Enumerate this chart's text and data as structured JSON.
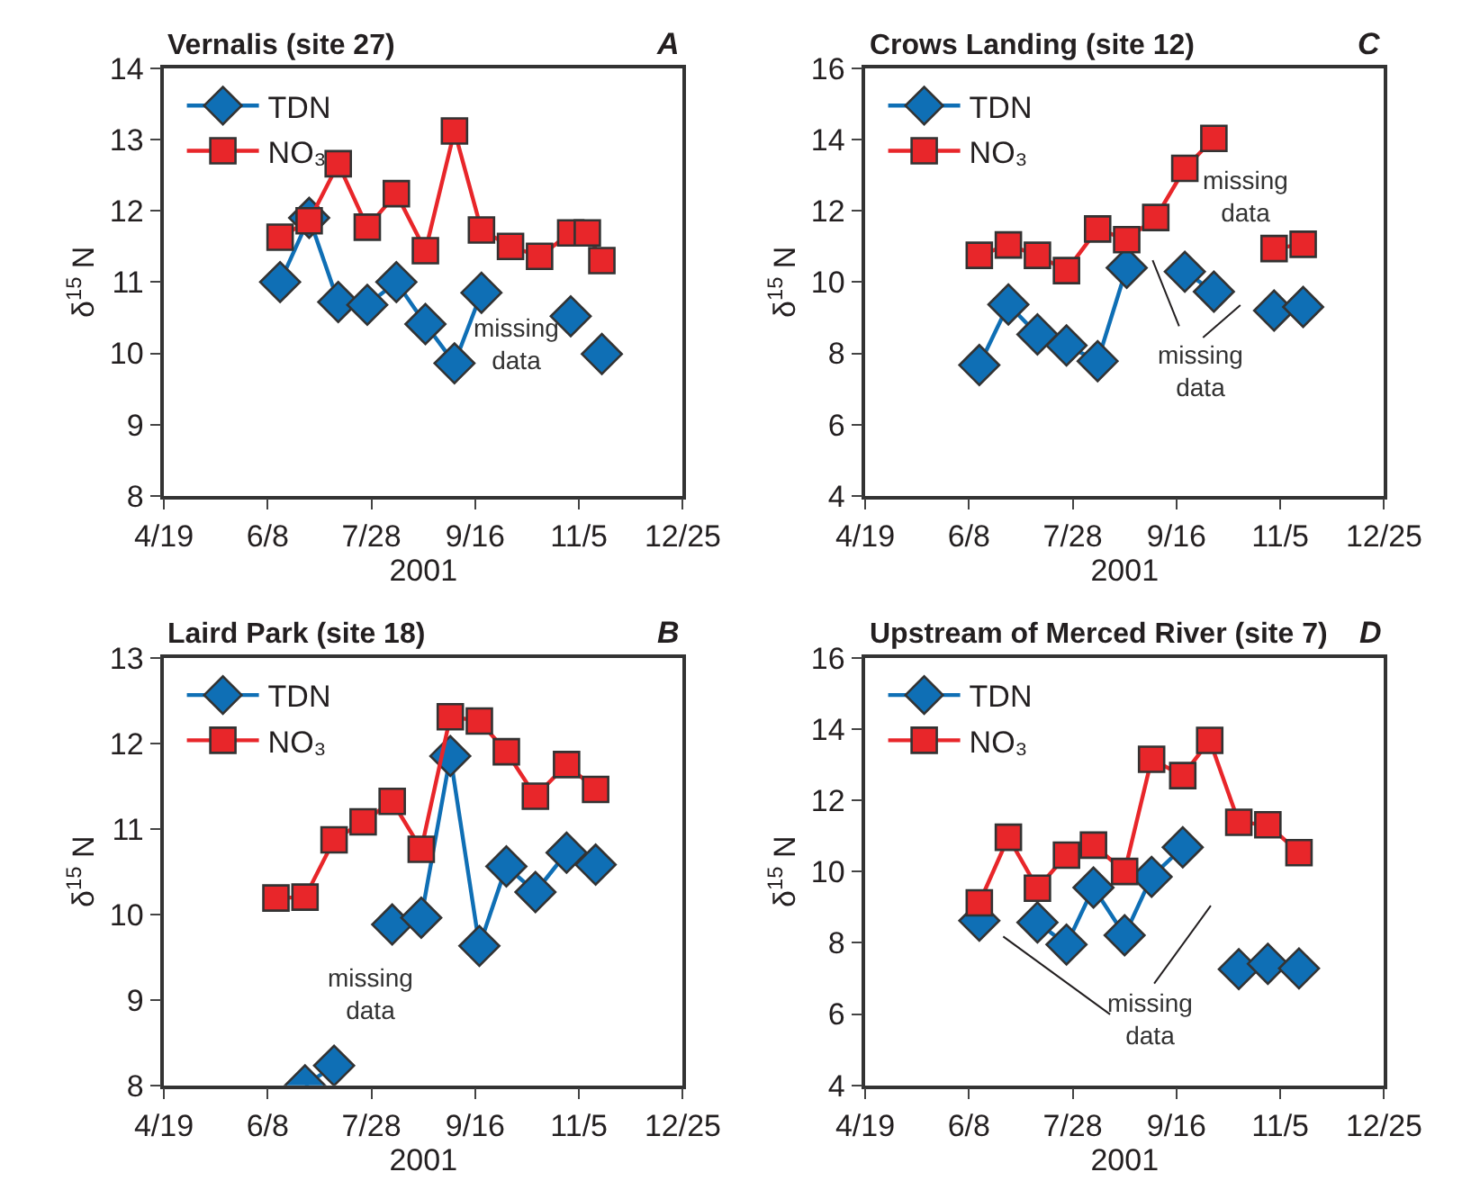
{
  "chart_data": [
    {
      "type": "line",
      "title": "Vernalis (site 27)",
      "xlabel": "2001",
      "ylabel": "δ$^{15}$ N",
      "x": [
        "2001-06-14",
        "2001-06-28",
        "2001-07-12",
        "2001-07-26",
        "2001-08-09",
        "2001-08-23",
        "2001-09-06",
        "2001-09-19",
        "2001-10-03",
        "2001-10-17",
        "2001-11-01",
        "2001-11-09",
        "2001-11-16"
      ],
      "series": [
        {
          "name": "TDN",
          "color": "#0f6fb5",
          "marker": "diamond",
          "values": [
            11.0,
            11.9,
            10.72,
            10.68,
            11.0,
            10.41,
            9.86,
            10.85,
            null,
            null,
            10.52,
            null,
            9.99
          ]
        },
        {
          "name": "NO₃",
          "color": "#e8262a",
          "marker": "square",
          "values": [
            11.63,
            11.86,
            12.66,
            11.77,
            12.24,
            11.44,
            13.12,
            11.73,
            11.5,
            11.36,
            11.69,
            11.69,
            11.3
          ]
        }
      ],
      "xlim": [
        "2001-04-19",
        "2001-12-25"
      ],
      "xticks": [
        {
          "value": "2001-04-19",
          "label": "4/19"
        },
        {
          "value": "2001-06-08",
          "label": "6/8"
        },
        {
          "value": "2001-07-28",
          "label": "7/28"
        },
        {
          "value": "2001-09-16",
          "label": "9/16"
        },
        {
          "value": "2001-11-05",
          "label": "11/5"
        },
        {
          "value": "2001-12-25",
          "label": "12/25"
        }
      ],
      "ylim": [
        8,
        14
      ],
      "yticks": [
        8,
        9,
        10,
        11,
        12,
        13,
        14
      ],
      "legend": "top left",
      "annotations": [
        "A",
        "missing data"
      ]
    },
    {
      "type": "line",
      "title": "Crows Landing (site 12)",
      "xlabel": "2001",
      "ylabel": "δ$^{15}$ N",
      "x": [
        "2001-06-13",
        "2001-06-27",
        "2001-07-11",
        "2001-07-25",
        "2001-08-09",
        "2001-08-23",
        "2001-09-06",
        "2001-09-20",
        "2001-10-04",
        "2001-10-18",
        "2001-11-02",
        "2001-11-16"
      ],
      "series": [
        {
          "name": "TDN",
          "color": "#0f6fb5",
          "marker": "diamond",
          "values": [
            7.67,
            9.37,
            8.53,
            8.22,
            7.78,
            10.4,
            null,
            10.29,
            9.73,
            null,
            9.2,
            9.3
          ]
        },
        {
          "name": "NO₃",
          "color": "#e8262a",
          "marker": "square",
          "values": [
            10.75,
            11.04,
            10.75,
            10.32,
            11.49,
            11.19,
            11.81,
            13.19,
            14.03,
            null,
            10.94,
            11.06
          ]
        }
      ],
      "xlim": [
        "2001-04-19",
        "2001-12-25"
      ],
      "xticks": [
        {
          "value": "2001-04-19",
          "label": "4/19"
        },
        {
          "value": "2001-06-08",
          "label": "6/8"
        },
        {
          "value": "2001-07-28",
          "label": "7/28"
        },
        {
          "value": "2001-09-16",
          "label": "9/16"
        },
        {
          "value": "2001-11-05",
          "label": "11/5"
        },
        {
          "value": "2001-12-25",
          "label": "12/25"
        }
      ],
      "ylim": [
        4,
        16
      ],
      "yticks": [
        4,
        6,
        8,
        10,
        12,
        14,
        16
      ],
      "legend": "top left",
      "annotations": [
        "C",
        "missing data",
        "missing data"
      ]
    },
    {
      "type": "line",
      "title": "Laird Park (site 18)",
      "xlabel": "2001",
      "ylabel": "δ$^{15}$ N",
      "x": [
        "2001-06-12",
        "2001-06-26",
        "2001-07-10",
        "2001-07-24",
        "2001-08-07",
        "2001-08-21",
        "2001-09-04",
        "2001-09-18",
        "2001-10-01",
        "2001-10-15",
        "2001-10-30",
        "2001-11-13"
      ],
      "series": [
        {
          "name": "TDN",
          "color": "#0f6fb5",
          "marker": "diamond",
          "values": [
            null,
            8.0,
            8.23,
            null,
            9.88,
            9.96,
            11.85,
            9.63,
            10.56,
            10.26,
            10.72,
            10.58
          ]
        },
        {
          "name": "NO₃",
          "color": "#e8262a",
          "marker": "square",
          "values": [
            10.19,
            10.2,
            10.87,
            11.08,
            11.32,
            10.76,
            12.31,
            12.26,
            11.9,
            11.38,
            11.75,
            11.46
          ]
        }
      ],
      "xlim": [
        "2001-04-19",
        "2001-12-25"
      ],
      "xticks": [
        {
          "value": "2001-04-19",
          "label": "4/19"
        },
        {
          "value": "2001-06-08",
          "label": "6/8"
        },
        {
          "value": "2001-07-28",
          "label": "7/28"
        },
        {
          "value": "2001-09-16",
          "label": "9/16"
        },
        {
          "value": "2001-11-05",
          "label": "11/5"
        },
        {
          "value": "2001-12-25",
          "label": "12/25"
        }
      ],
      "ylim": [
        8,
        13
      ],
      "yticks": [
        8,
        9,
        10,
        11,
        12,
        13
      ],
      "legend": "top left",
      "annotations": [
        "B",
        "missing data"
      ]
    },
    {
      "type": "line",
      "title": "Upstream of Merced River (site 7)",
      "xlabel": "2001",
      "ylabel": "δ$^{15}$ N",
      "x": [
        "2001-06-13",
        "2001-06-27",
        "2001-07-11",
        "2001-07-25",
        "2001-08-07",
        "2001-08-22",
        "2001-09-04",
        "2001-09-19",
        "2001-10-02",
        "2001-10-16",
        "2001-10-30",
        "2001-11-14"
      ],
      "series": [
        {
          "name": "TDN",
          "color": "#0f6fb5",
          "marker": "diamond",
          "values": [
            8.62,
            null,
            8.57,
            7.95,
            9.55,
            8.21,
            9.85,
            10.68,
            null,
            7.26,
            7.41,
            7.28
          ]
        },
        {
          "name": "NO₃",
          "color": "#e8262a",
          "marker": "square",
          "values": [
            9.12,
            10.96,
            9.53,
            10.46,
            10.74,
            10.0,
            13.15,
            12.69,
            13.68,
            11.38,
            11.31,
            10.53
          ]
        }
      ],
      "xlim": [
        "2001-04-19",
        "2001-12-25"
      ],
      "xticks": [
        {
          "value": "2001-04-19",
          "label": "4/19"
        },
        {
          "value": "2001-06-08",
          "label": "6/8"
        },
        {
          "value": "2001-07-28",
          "label": "7/28"
        },
        {
          "value": "2001-09-16",
          "label": "9/16"
        },
        {
          "value": "2001-11-05",
          "label": "11/5"
        },
        {
          "value": "2001-12-25",
          "label": "12/25"
        }
      ],
      "ylim": [
        4,
        16
      ],
      "yticks": [
        4,
        6,
        8,
        10,
        12,
        14,
        16
      ],
      "legend": "top left",
      "annotations": [
        "D",
        "missing data"
      ]
    }
  ]
}
